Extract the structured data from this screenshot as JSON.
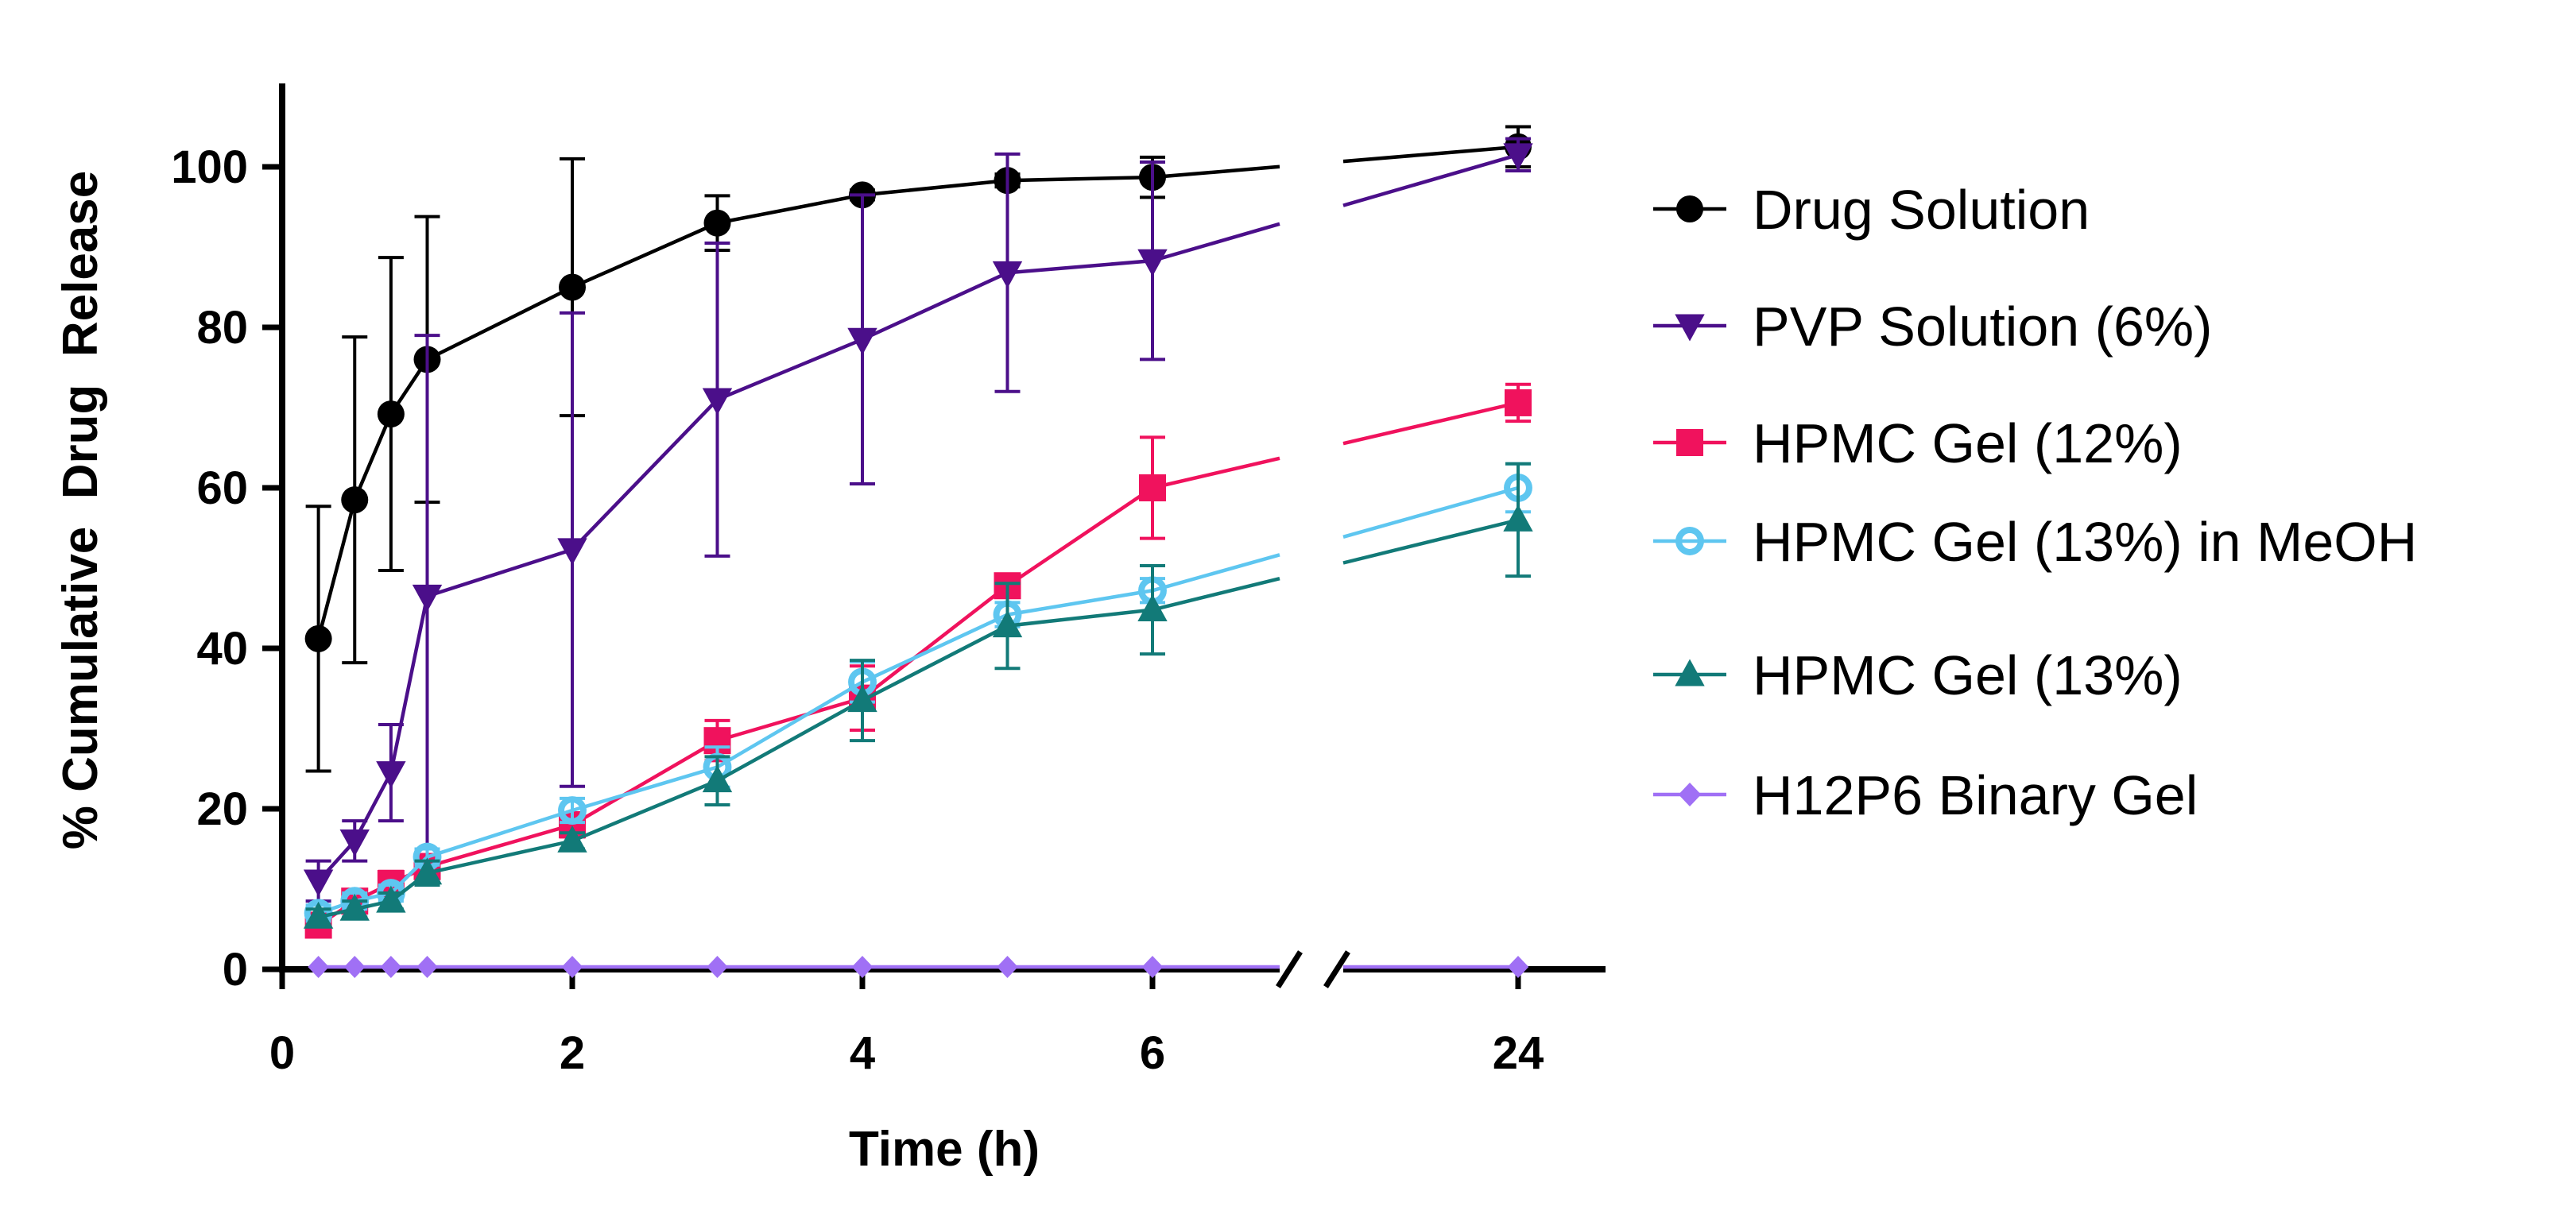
{
  "chart_data": {
    "type": "line",
    "xlabel": "Time (h)",
    "ylabel": "% Cumulative  Drug  Release",
    "ylim": [
      0,
      110
    ],
    "yticks": [
      0,
      20,
      40,
      60,
      80,
      100
    ],
    "xaxis_segments": [
      {
        "range": [
          0,
          7.0
        ],
        "ticks": [
          0,
          2,
          4,
          6
        ]
      },
      {
        "range": [
          23.2,
          24.6
        ],
        "ticks": [
          24
        ]
      }
    ],
    "xtick_labels": [
      "0",
      "2",
      "4",
      "6",
      "24"
    ],
    "ytick_labels": [
      "0",
      "20",
      "40",
      "60",
      "80",
      "100"
    ],
    "axis_break": true,
    "legend_position": "right",
    "series": [
      {
        "name": "Drug Solution",
        "color": "#000000",
        "marker": "circle-filled",
        "x": [
          0.25,
          0.5,
          0.75,
          1,
          2,
          3,
          4,
          5,
          6,
          24
        ],
        "y": [
          41.2,
          58.5,
          69.2,
          76,
          85,
          93,
          96.5,
          98.3,
          98.7,
          102.5
        ],
        "err": [
          16.5,
          20.3,
          19.5,
          17.8,
          16,
          3.4,
          0.6,
          0.8,
          2.5,
          2.5
        ]
      },
      {
        "name": "PVP Solution (6%)",
        "color": "#4b0f8a",
        "marker": "triangle-down",
        "x": [
          0.25,
          0.5,
          0.75,
          1,
          2,
          3,
          4,
          5,
          6,
          24
        ],
        "y": [
          11,
          16,
          24.5,
          46.5,
          52.3,
          71,
          78.5,
          86.8,
          88.3,
          101.5
        ],
        "err": [
          2.5,
          2.5,
          6,
          32.5,
          29.5,
          19.5,
          18,
          14.8,
          12.3,
          2
        ]
      },
      {
        "name": "HPMC Gel (12%)",
        "color": "#f0125d",
        "marker": "square-filled",
        "x": [
          0.25,
          0.5,
          0.75,
          1,
          2,
          3,
          4,
          5,
          6,
          24
        ],
        "y": [
          5.5,
          8.5,
          10.7,
          12.8,
          18,
          28.5,
          33.8,
          47.8,
          60,
          70.6
        ],
        "err": [
          1,
          1,
          1.5,
          1.5,
          1.5,
          2.5,
          4,
          1.2,
          6.3,
          2.3
        ]
      },
      {
        "name": "HPMC Gel (13%) in MeOH",
        "color": "#5ec6f0",
        "marker": "circle-open",
        "x": [
          0.25,
          0.5,
          0.75,
          1,
          2,
          3,
          4,
          5,
          6,
          24
        ],
        "y": [
          7,
          8.5,
          9.5,
          14,
          19.8,
          25.2,
          35.8,
          44.2,
          47.2,
          60
        ],
        "err": [
          1,
          1,
          1,
          1,
          1.5,
          2.5,
          2.5,
          1.5,
          1.5,
          3
        ]
      },
      {
        "name": "HPMC Gel (13%)",
        "color": "#127a78",
        "marker": "triangle-up",
        "x": [
          0.25,
          0.5,
          0.75,
          1,
          2,
          3,
          4,
          5,
          6,
          24
        ],
        "y": [
          6.5,
          7.5,
          8.5,
          12,
          16,
          23.5,
          33.5,
          42.8,
          44.8,
          56
        ],
        "err": [
          1,
          1,
          1,
          1.5,
          1,
          3,
          5,
          5.3,
          5.5,
          7
        ]
      },
      {
        "name": "H12P6 Binary Gel",
        "color": "#a070f5",
        "marker": "diamond",
        "x": [
          0.25,
          0.5,
          0.75,
          1,
          2,
          3,
          4,
          5,
          6,
          24
        ],
        "y": [
          0.3,
          0.3,
          0.3,
          0.3,
          0.3,
          0.3,
          0.3,
          0.3,
          0.3,
          0.3
        ],
        "err": [
          0,
          0,
          0,
          0,
          0,
          0,
          0,
          0,
          0,
          0
        ]
      }
    ]
  }
}
